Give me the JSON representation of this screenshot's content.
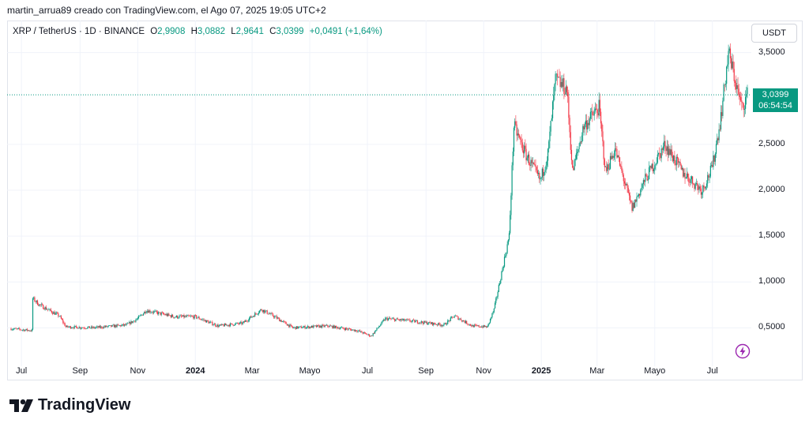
{
  "header": {
    "text": "martin_arrua89 creado con TradingView.com, el Ago 07, 2025 19:05 UTC+2"
  },
  "symbol": {
    "name": "XRP / TetherUS · 1D · BINANCE",
    "o_label": "O",
    "o_value": "2,9908",
    "h_label": "H",
    "h_value": "3,0882",
    "l_label": "L",
    "l_value": "2,9641",
    "c_label": "C",
    "c_value": "3,0399",
    "change": "+0,0491 (+1,64%)"
  },
  "currency": "USDT",
  "last_price": {
    "value": "3,0399",
    "countdown": "06:54:54",
    "numeric": 3.0399
  },
  "colors": {
    "up": "#089981",
    "down": "#f23645",
    "grid": "#f0f3fa",
    "accent": "#9c27b0"
  },
  "chart_data": {
    "type": "candlestick",
    "ylim": [
      0.15,
      3.85
    ],
    "yticks": [
      {
        "label": "3,5000",
        "value": 3.5
      },
      {
        "label": "2,5000",
        "value": 2.5
      },
      {
        "label": "2,0000",
        "value": 2.0
      },
      {
        "label": "1,5000",
        "value": 1.5
      },
      {
        "label": "1,0000",
        "value": 1.0
      },
      {
        "label": "0,5000",
        "value": 0.5
      }
    ],
    "xticks": [
      {
        "label": "Jul",
        "date": "2023-07-01",
        "bold": false
      },
      {
        "label": "Sep",
        "date": "2023-09-01",
        "bold": false
      },
      {
        "label": "Nov",
        "date": "2023-11-01",
        "bold": false
      },
      {
        "label": "2024",
        "date": "2024-01-01",
        "bold": true
      },
      {
        "label": "Mar",
        "date": "2024-03-01",
        "bold": false
      },
      {
        "label": "Mayo",
        "date": "2024-05-01",
        "bold": false
      },
      {
        "label": "Jul",
        "date": "2024-07-01",
        "bold": false
      },
      {
        "label": "Sep",
        "date": "2024-09-01",
        "bold": false
      },
      {
        "label": "Nov",
        "date": "2024-11-01",
        "bold": false
      },
      {
        "label": "2025",
        "date": "2025-01-01",
        "bold": true
      },
      {
        "label": "Mar",
        "date": "2025-03-01",
        "bold": false
      },
      {
        "label": "Mayo",
        "date": "2025-05-01",
        "bold": false
      },
      {
        "label": "Jul",
        "date": "2025-07-01",
        "bold": false
      }
    ],
    "xrange": [
      "2023-06-20",
      "2025-08-07"
    ],
    "close_path": [
      [
        "2023-06-20",
        0.49
      ],
      [
        "2023-07-12",
        0.47
      ],
      [
        "2023-07-13",
        0.82
      ],
      [
        "2023-07-20",
        0.75
      ],
      [
        "2023-08-10",
        0.63
      ],
      [
        "2023-08-17",
        0.51
      ],
      [
        "2023-09-15",
        0.5
      ],
      [
        "2023-10-20",
        0.53
      ],
      [
        "2023-11-01",
        0.6
      ],
      [
        "2023-11-10",
        0.69
      ],
      [
        "2023-12-10",
        0.62
      ],
      [
        "2024-01-01",
        0.62
      ],
      [
        "2024-01-25",
        0.52
      ],
      [
        "2024-02-20",
        0.55
      ],
      [
        "2024-03-11",
        0.7
      ],
      [
        "2024-03-25",
        0.62
      ],
      [
        "2024-04-13",
        0.5
      ],
      [
        "2024-05-20",
        0.52
      ],
      [
        "2024-06-20",
        0.47
      ],
      [
        "2024-07-05",
        0.41
      ],
      [
        "2024-07-20",
        0.6
      ],
      [
        "2024-08-20",
        0.57
      ],
      [
        "2024-09-20",
        0.53
      ],
      [
        "2024-10-01",
        0.63
      ],
      [
        "2024-10-20",
        0.52
      ],
      [
        "2024-11-05",
        0.51
      ],
      [
        "2024-11-12",
        0.7
      ],
      [
        "2024-11-20",
        1.1
      ],
      [
        "2024-11-28",
        1.5
      ],
      [
        "2024-12-03",
        2.7
      ],
      [
        "2024-12-15",
        2.4
      ],
      [
        "2024-12-31",
        2.1
      ],
      [
        "2025-01-08",
        2.4
      ],
      [
        "2025-01-16",
        3.2
      ],
      [
        "2025-01-28",
        3.1
      ],
      [
        "2025-02-03",
        2.2
      ],
      [
        "2025-02-15",
        2.7
      ],
      [
        "2025-03-03",
        2.9
      ],
      [
        "2025-03-10",
        2.2
      ],
      [
        "2025-03-20",
        2.45
      ],
      [
        "2025-04-07",
        1.8
      ],
      [
        "2025-04-20",
        2.1
      ],
      [
        "2025-05-12",
        2.5
      ],
      [
        "2025-05-30",
        2.2
      ],
      [
        "2025-06-20",
        2.0
      ],
      [
        "2025-07-01",
        2.25
      ],
      [
        "2025-07-10",
        2.8
      ],
      [
        "2025-07-18",
        3.5
      ],
      [
        "2025-07-25",
        3.2
      ],
      [
        "2025-08-01",
        2.9
      ],
      [
        "2025-08-07",
        3.04
      ]
    ]
  }
}
